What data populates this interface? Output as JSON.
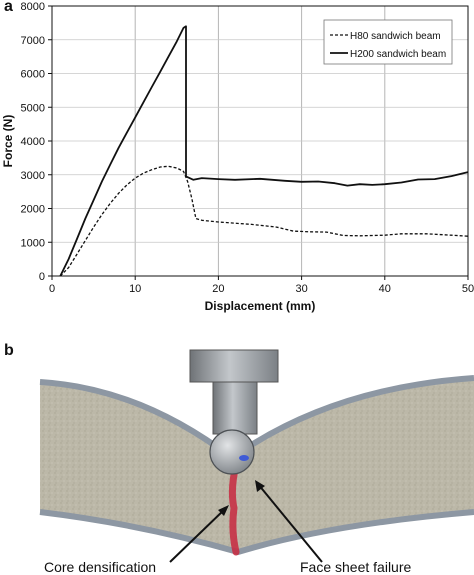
{
  "panel_a_label": "a",
  "panel_b_label": "b",
  "chart_data": {
    "type": "line",
    "title": "",
    "xlabel": "Displacement (mm)",
    "ylabel": "Force (N)",
    "xlim": [
      0,
      50
    ],
    "ylim": [
      0,
      8000
    ],
    "xticks": [
      0,
      10,
      20,
      30,
      40,
      50
    ],
    "yticks": [
      0,
      1000,
      2000,
      3000,
      4000,
      5000,
      6000,
      7000,
      8000
    ],
    "grid": "vertical",
    "legend_position": "top-right",
    "series": [
      {
        "name": "H80 sandwich beam",
        "style": "dashed",
        "color": "#111111",
        "points": [
          [
            1,
            0
          ],
          [
            2,
            250
          ],
          [
            3,
            650
          ],
          [
            4,
            1050
          ],
          [
            5,
            1450
          ],
          [
            6,
            1820
          ],
          [
            7,
            2150
          ],
          [
            8,
            2450
          ],
          [
            9,
            2700
          ],
          [
            10,
            2900
          ],
          [
            11,
            3050
          ],
          [
            12,
            3150
          ],
          [
            13,
            3230
          ],
          [
            14,
            3250
          ],
          [
            15,
            3200
          ],
          [
            15.8,
            3100
          ],
          [
            16.3,
            2800
          ],
          [
            16.8,
            2300
          ],
          [
            17.3,
            1700
          ],
          [
            18,
            1650
          ],
          [
            20,
            1600
          ],
          [
            24,
            1530
          ],
          [
            27,
            1450
          ],
          [
            29,
            1330
          ],
          [
            31,
            1310
          ],
          [
            33,
            1300
          ],
          [
            35,
            1200
          ],
          [
            37,
            1190
          ],
          [
            40,
            1210
          ],
          [
            42,
            1250
          ],
          [
            45,
            1250
          ],
          [
            48,
            1210
          ],
          [
            50,
            1180
          ]
        ]
      },
      {
        "name": "H200 sandwich beam",
        "style": "solid",
        "color": "#111111",
        "points": [
          [
            1,
            0
          ],
          [
            2,
            500
          ],
          [
            3,
            1100
          ],
          [
            4,
            1700
          ],
          [
            5,
            2250
          ],
          [
            6,
            2800
          ],
          [
            7,
            3300
          ],
          [
            8,
            3800
          ],
          [
            9,
            4250
          ],
          [
            10,
            4700
          ],
          [
            11,
            5150
          ],
          [
            12,
            5600
          ],
          [
            13,
            6050
          ],
          [
            14,
            6500
          ],
          [
            15,
            6950
          ],
          [
            15.8,
            7350
          ],
          [
            16.1,
            7400
          ],
          [
            16.1,
            2950
          ],
          [
            17,
            2850
          ],
          [
            18,
            2900
          ],
          [
            20,
            2870
          ],
          [
            22,
            2850
          ],
          [
            25,
            2880
          ],
          [
            28,
            2820
          ],
          [
            30,
            2790
          ],
          [
            32,
            2800
          ],
          [
            34,
            2750
          ],
          [
            35.5,
            2680
          ],
          [
            37,
            2720
          ],
          [
            38.5,
            2700
          ],
          [
            40,
            2720
          ],
          [
            42,
            2770
          ],
          [
            44,
            2860
          ],
          [
            46,
            2870
          ],
          [
            48,
            2960
          ],
          [
            50,
            3080
          ]
        ]
      }
    ]
  },
  "photo": {
    "annotations": {
      "left": "Core densification",
      "right": "Face sheet failure"
    },
    "colors": {
      "core": "#bcb8a8",
      "face_sheet": "#8d97a3",
      "indenter": "#9a9fa4",
      "crack": "#c8283f",
      "background": "#ffffff"
    }
  }
}
